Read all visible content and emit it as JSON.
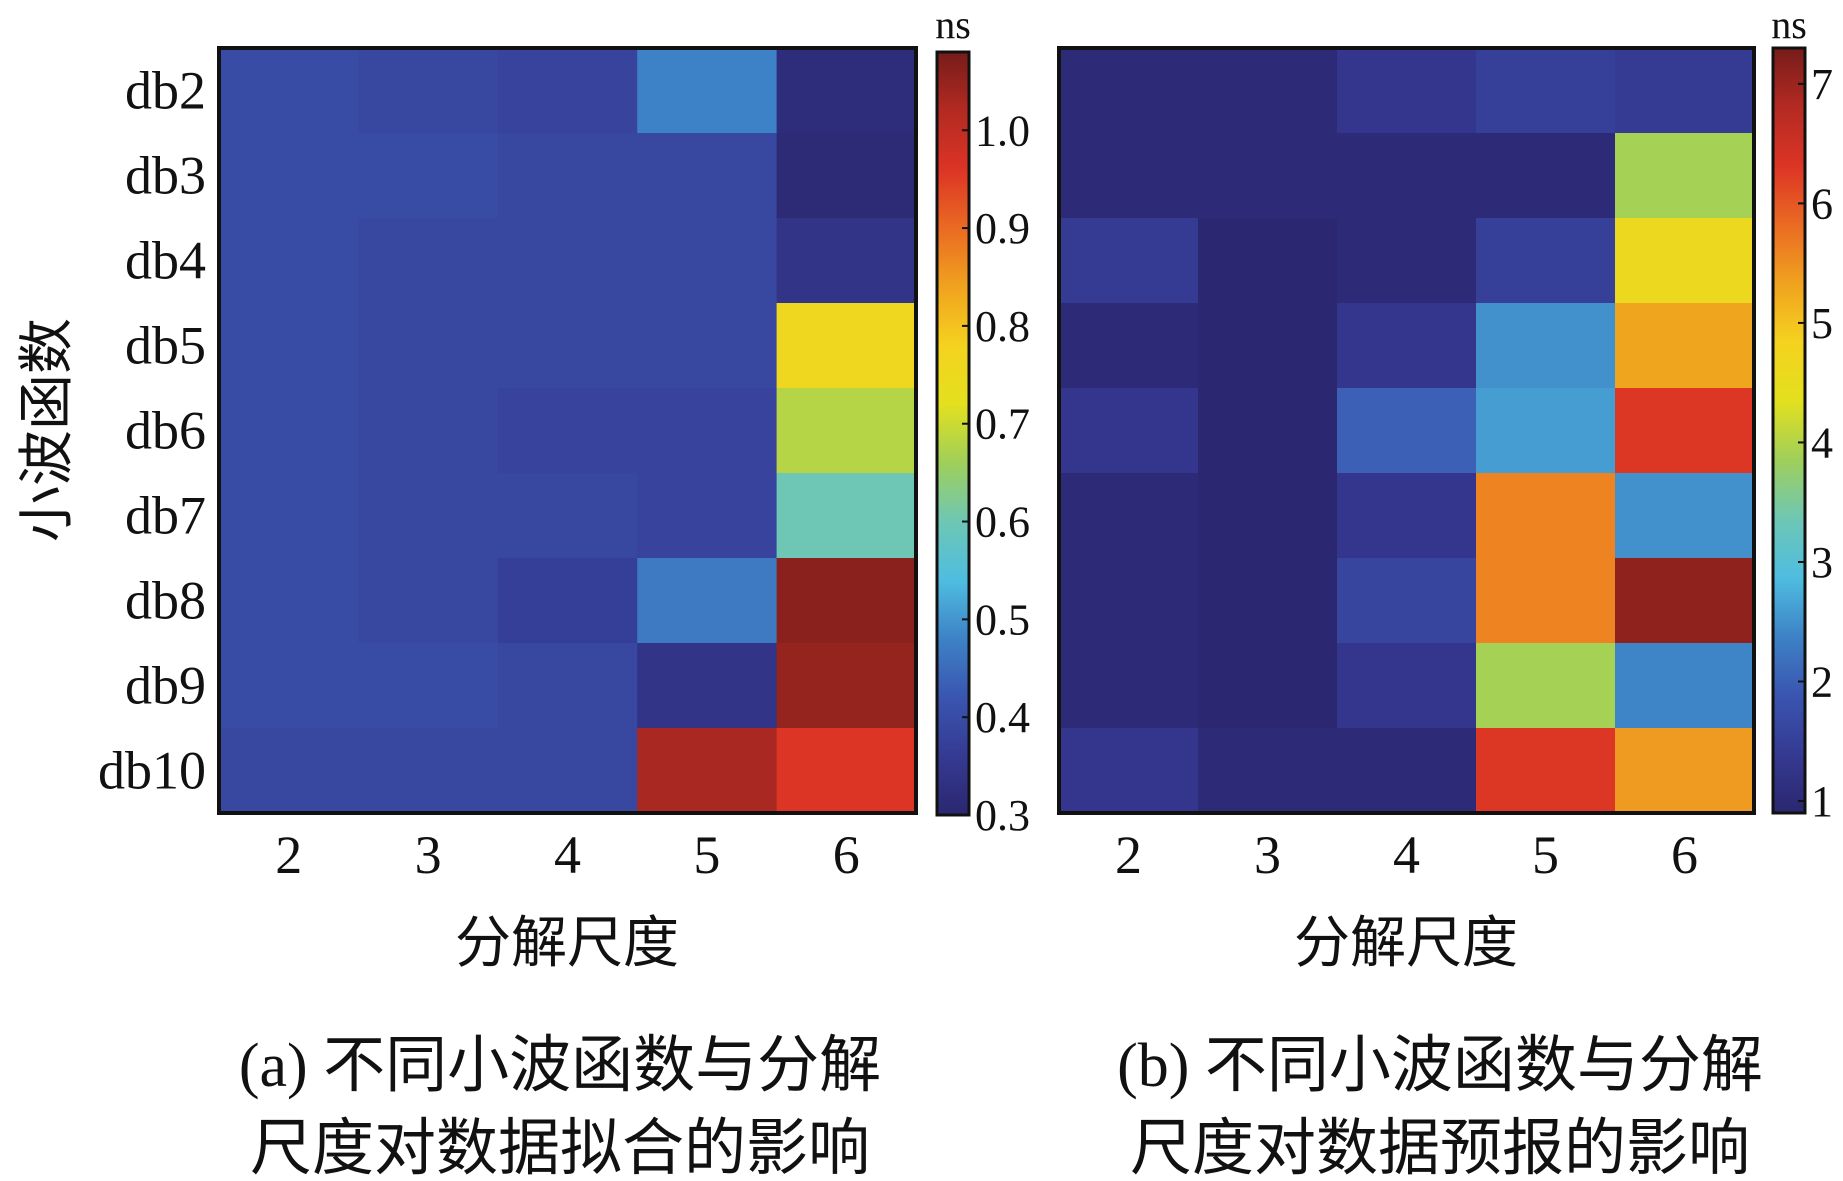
{
  "colorscale": [
    "#2b2770",
    "#353a92",
    "#3a55b0",
    "#3d82c6",
    "#4fbde0",
    "#6ec7b4",
    "#9fcf5a",
    "#e3e01e",
    "#f5d21f",
    "#f0a21f",
    "#ea6a23",
    "#dc3425",
    "#b32a22",
    "#761c1a"
  ],
  "chart_data": [
    {
      "type": "heatmap",
      "xlabel": "分解尺度",
      "ylabel": "小波函数",
      "x_categories": [
        "2",
        "3",
        "4",
        "5",
        "6"
      ],
      "y_categories": [
        "db2",
        "db3",
        "db4",
        "db5",
        "db6",
        "db7",
        "db8",
        "db9",
        "db10"
      ],
      "colorbar_unit": "ns",
      "colorbar_range": [
        0.3,
        1.08
      ],
      "colorbar_ticks": [
        "0.3",
        "0.4",
        "0.5",
        "0.6",
        "0.7",
        "0.8",
        "0.9",
        "1.0"
      ],
      "values": [
        [
          0.4,
          0.39,
          0.38,
          0.48,
          0.32
        ],
        [
          0.4,
          0.4,
          0.39,
          0.39,
          0.31
        ],
        [
          0.4,
          0.39,
          0.39,
          0.39,
          0.34
        ],
        [
          0.4,
          0.39,
          0.39,
          0.39,
          0.76
        ],
        [
          0.4,
          0.39,
          0.38,
          0.38,
          0.68
        ],
        [
          0.4,
          0.39,
          0.39,
          0.38,
          0.6
        ],
        [
          0.4,
          0.39,
          0.37,
          0.47,
          1.06
        ],
        [
          0.4,
          0.4,
          0.39,
          0.34,
          1.05
        ],
        [
          0.39,
          0.39,
          0.39,
          1.03,
          0.96
        ]
      ],
      "caption_line1": "(a) 不同小波函数与分解",
      "caption_line2": "尺度对数据拟合的影响"
    },
    {
      "type": "heatmap",
      "xlabel": "分解尺度",
      "x_categories": [
        "2",
        "3",
        "4",
        "5",
        "6"
      ],
      "y_categories": [
        "db2",
        "db3",
        "db4",
        "db5",
        "db6",
        "db7",
        "db8",
        "db9",
        "db10"
      ],
      "colorbar_unit": "ns",
      "colorbar_range": [
        0.9,
        7.3
      ],
      "colorbar_ticks": [
        "1",
        "2",
        "3",
        "4",
        "5",
        "6",
        "7"
      ],
      "values": [
        [
          1.0,
          1.0,
          1.3,
          1.5,
          1.4
        ],
        [
          1.0,
          1.0,
          1.0,
          1.0,
          3.9
        ],
        [
          1.4,
          0.9,
          1.0,
          1.5,
          4.6
        ],
        [
          1.0,
          0.9,
          1.3,
          2.5,
          5.3
        ],
        [
          1.3,
          0.9,
          2.0,
          2.6,
          6.3
        ],
        [
          1.0,
          0.9,
          1.3,
          5.6,
          2.5
        ],
        [
          1.0,
          0.9,
          1.6,
          5.6,
          7.1
        ],
        [
          1.0,
          0.9,
          1.3,
          3.9,
          2.4
        ],
        [
          1.3,
          1.0,
          1.0,
          6.3,
          5.4
        ]
      ],
      "caption_line1": "(b) 不同小波函数与分解",
      "caption_line2": "尺度对数据预报的影响"
    }
  ]
}
